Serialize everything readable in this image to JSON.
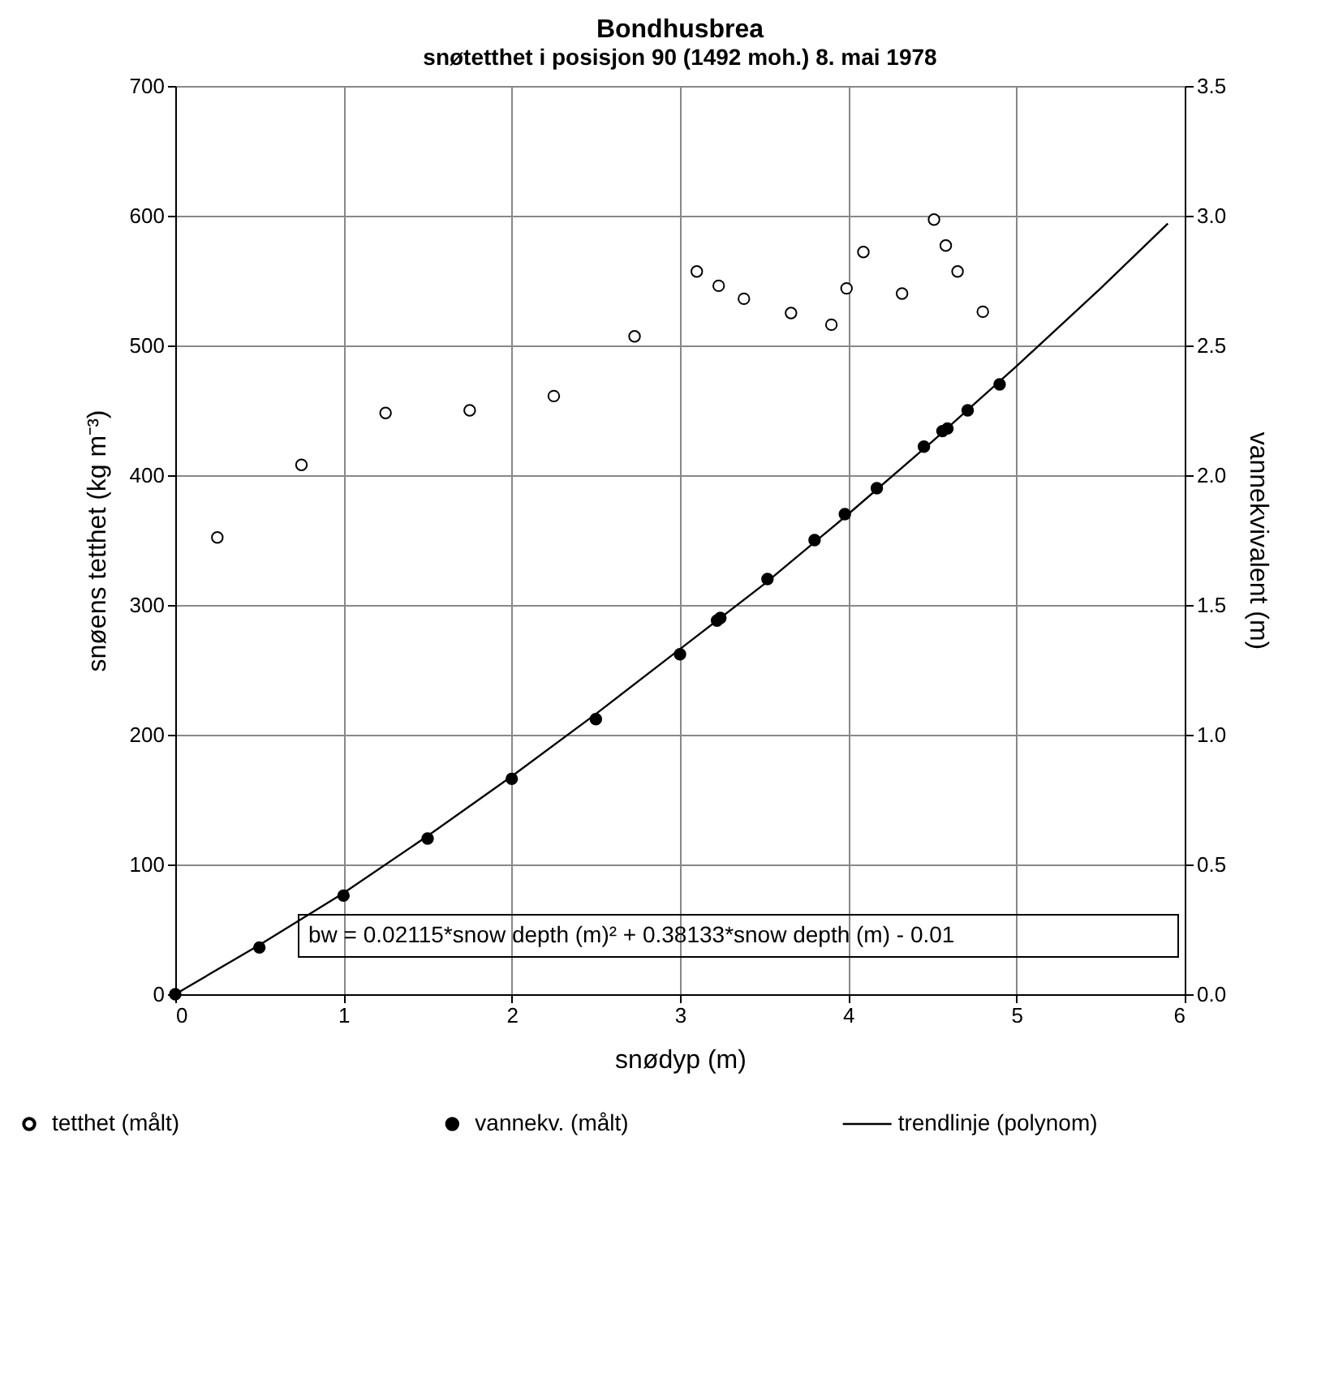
{
  "chart_data": {
    "type": "scatter",
    "title": "Bondhusbrea",
    "subtitle": "snøtetthet i posisjon 90 (1492 moh.) 8. mai 1978",
    "xlabel": "snødyp (m)",
    "ylabel": "snøens tetthet (kg m⁻³)",
    "y2label": "vannekvivalent (m)",
    "xlim": [
      0,
      6
    ],
    "xticks": [
      0,
      1,
      2,
      3,
      4,
      5,
      6
    ],
    "ylim": [
      0,
      700
    ],
    "yticks": [
      0,
      100,
      200,
      300,
      400,
      500,
      600,
      700
    ],
    "y2lim": [
      0,
      3.5
    ],
    "y2ticks": [
      {
        "value": 0,
        "label": "0.0"
      },
      {
        "value": 0.5,
        "label": "0.5"
      },
      {
        "value": 1,
        "label": "1.0"
      },
      {
        "value": 1.5,
        "label": "1.5"
      },
      {
        "value": 2,
        "label": "2.0"
      },
      {
        "value": 2.5,
        "label": "2.5"
      },
      {
        "value": 3,
        "label": "3.0"
      },
      {
        "value": 3.5,
        "label": "3.5"
      }
    ],
    "grid": true,
    "legend": "bottom",
    "annotations": [
      "bw = 0.02115*snow depth (m)² + 0.38133*snow depth (m) - 0.01"
    ],
    "series": [
      {
        "name": "tetthet (målt)",
        "type": "scatter",
        "marker": "circle",
        "color": "#ffffff",
        "x": [
          0.25,
          0.75,
          1.25,
          1.75,
          2.25,
          2.73,
          3.1,
          3.23,
          3.38,
          3.66,
          3.9,
          3.99,
          4.09,
          4.32,
          4.51,
          4.58,
          4.65,
          4.8
        ],
        "values": [
          352,
          408,
          448,
          450,
          461,
          507,
          557,
          546,
          536,
          525,
          516,
          544,
          572,
          540,
          597,
          577,
          557,
          526
        ]
      },
      {
        "name": "vannekv. (målt)",
        "type": "scatter",
        "marker": "circle",
        "color": "#000000",
        "axis": "y2",
        "x": [
          0,
          0.5,
          1,
          1.5,
          2,
          2.5,
          3,
          3.22,
          3.24,
          3.52,
          3.8,
          3.98,
          4.17,
          4.45,
          4.56,
          4.59,
          4.71,
          4.9
        ],
        "values": [
          0,
          0.18,
          0.38,
          0.6,
          0.83,
          1.06,
          1.31,
          1.44,
          1.45,
          1.6,
          1.75,
          1.85,
          1.95,
          2.11,
          2.17,
          2.18,
          2.25,
          2.35
        ]
      },
      {
        "name": "trendlinje (polynom)",
        "type": "line",
        "marker": "none",
        "line_style": "solid",
        "color": "#000000",
        "axis": "y2",
        "x": [
          0,
          0.5,
          1,
          1.5,
          2,
          2.5,
          3,
          3.5,
          4,
          4.5,
          5,
          5.5,
          5.9
        ],
        "values": [
          0,
          0.19,
          0.39,
          0.61,
          0.84,
          1.08,
          1.33,
          1.58,
          1.85,
          2.13,
          2.42,
          2.72,
          2.97
        ]
      }
    ]
  }
}
